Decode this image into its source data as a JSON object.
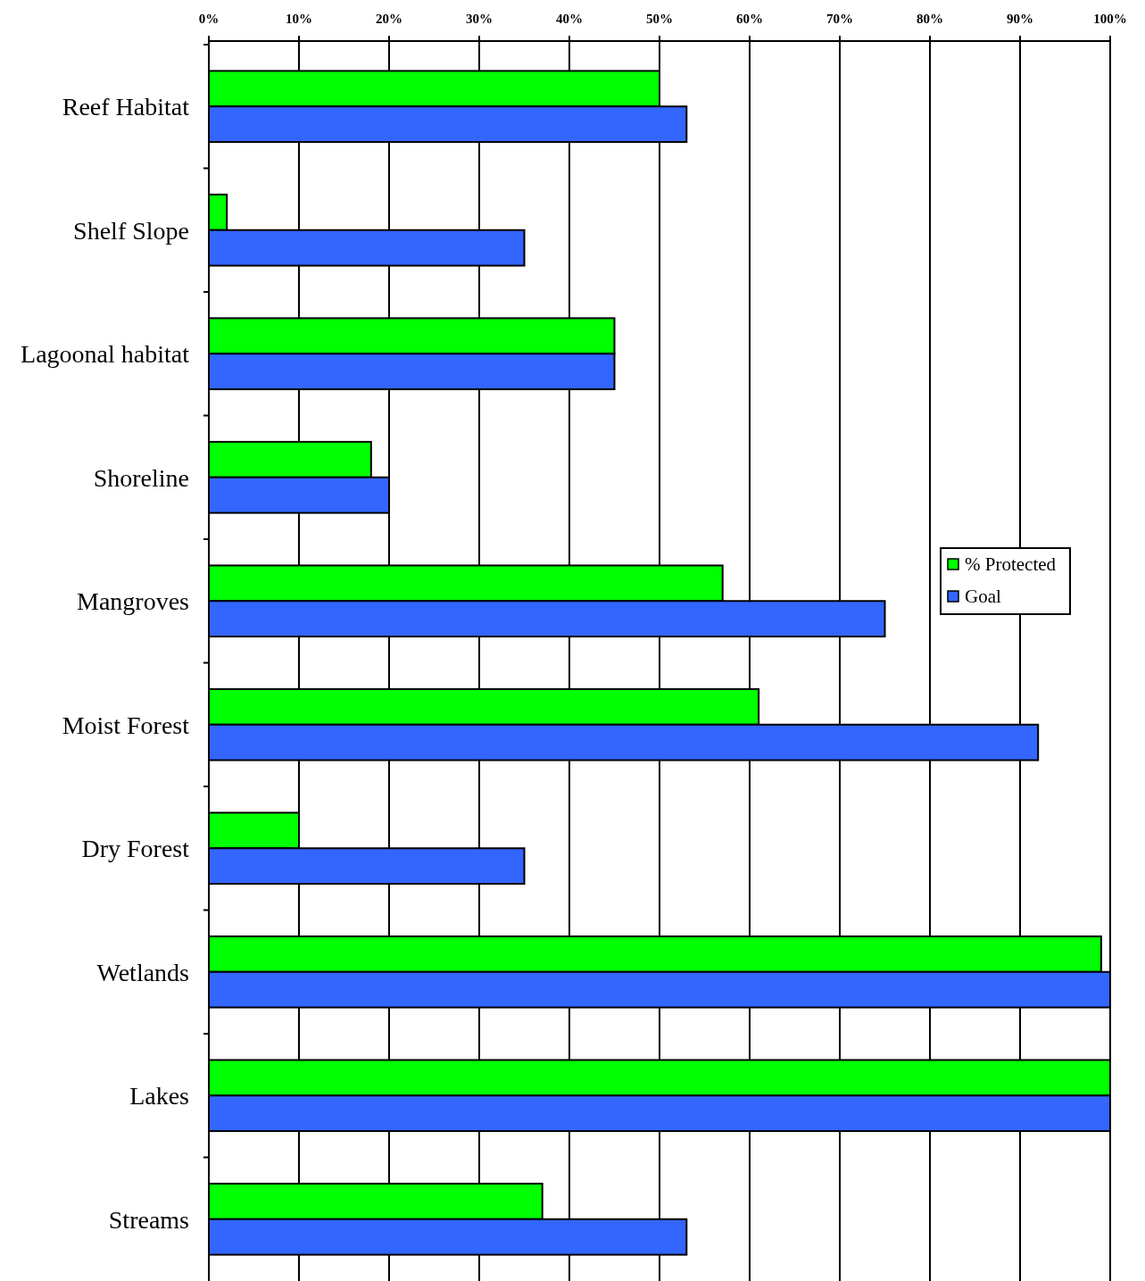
{
  "chart_data": {
    "type": "bar",
    "orientation": "horizontal",
    "categories": [
      "Reef Habitat",
      "Shelf Slope",
      "Lagoonal habitat",
      "Shoreline",
      "Mangroves",
      "Moist Forest",
      "Dry Forest",
      "Wetlands",
      "Lakes",
      "Streams"
    ],
    "series": [
      {
        "name": "% Protected",
        "color": "#00ff00",
        "values": [
          50,
          2,
          45,
          18,
          57,
          61,
          10,
          99,
          100,
          37
        ]
      },
      {
        "name": "Goal",
        "color": "#3366ff",
        "values": [
          53,
          35,
          45,
          20,
          75,
          92,
          35,
          100,
          100,
          53
        ]
      }
    ],
    "xlim": [
      0,
      100
    ],
    "xticks": [
      {
        "value": 0,
        "label": "0%"
      },
      {
        "value": 10,
        "label": "10%"
      },
      {
        "value": 20,
        "label": "20%"
      },
      {
        "value": 30,
        "label": "30%"
      },
      {
        "value": 40,
        "label": "40%"
      },
      {
        "value": 50,
        "label": "50%"
      },
      {
        "value": 60,
        "label": "60%"
      },
      {
        "value": 70,
        "label": "70%"
      },
      {
        "value": 80,
        "label": "80%"
      },
      {
        "value": 90,
        "label": "90%"
      },
      {
        "value": 100,
        "label": "100%"
      }
    ],
    "grid": "x",
    "legend": "right"
  }
}
